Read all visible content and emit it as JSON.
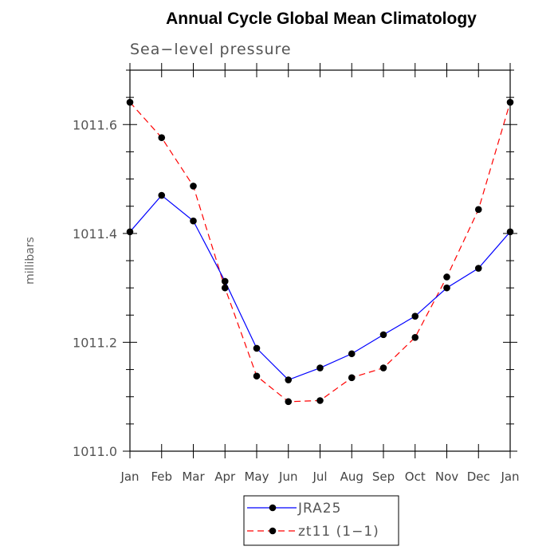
{
  "chart_data": {
    "type": "line",
    "title": "Annual Cycle Global Mean Climatology",
    "subtitle": "Sea−level pressure",
    "xlabel": "",
    "ylabel": "millibars",
    "ylim": [
      1011.0,
      1011.7
    ],
    "yticks": [
      1011.0,
      1011.2,
      1011.4,
      1011.6
    ],
    "ytick_labels": [
      "1011.0",
      "1011.2",
      "1011.4",
      "1011.6"
    ],
    "categories": [
      "Jan",
      "Feb",
      "Mar",
      "Apr",
      "May",
      "Jun",
      "Jul",
      "Aug",
      "Sep",
      "Oct",
      "Nov",
      "Dec",
      "Jan"
    ],
    "grid": false,
    "legend_position": "bottom-center",
    "series": [
      {
        "name": "JRA25",
        "color": "#0000ff",
        "dash": "solid",
        "values": [
          1011.403,
          1011.47,
          1011.423,
          1011.312,
          1011.189,
          1011.131,
          1011.153,
          1011.179,
          1011.214,
          1011.248,
          1011.3,
          1011.336,
          1011.403
        ]
      },
      {
        "name": "zt11 (1−1)",
        "color": "#ff0000",
        "dash": "dashed",
        "values": [
          1011.641,
          1011.576,
          1011.487,
          1011.3,
          1011.138,
          1011.091,
          1011.093,
          1011.135,
          1011.153,
          1011.209,
          1011.32,
          1011.444,
          1011.641
        ]
      }
    ]
  }
}
